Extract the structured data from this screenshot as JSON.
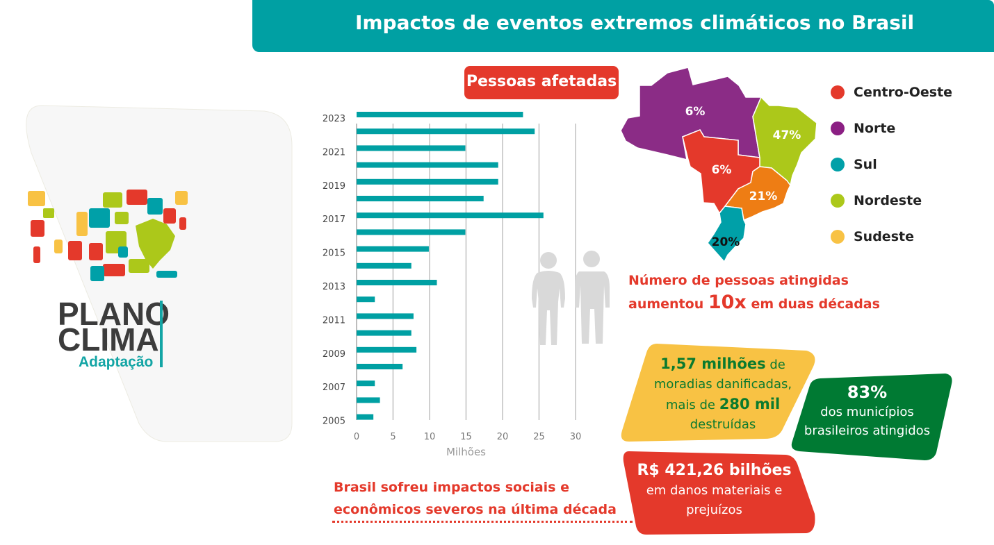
{
  "header": {
    "title": "Impactos de eventos extremos climáticos no Brasil"
  },
  "logo": {
    "line1": "PLANO",
    "line2": "CLIMA",
    "line3": "Adaptação"
  },
  "chart_badge": "Pessoas afetadas",
  "chart_data": {
    "type": "bar",
    "orientation": "horizontal",
    "categories": [
      "2023",
      "2022",
      "2021",
      "2020",
      "2019",
      "2018",
      "2017",
      "2016",
      "2015",
      "2014",
      "2013",
      "2012",
      "2011",
      "2010",
      "2009",
      "2008",
      "2007",
      "2006",
      "2005"
    ],
    "category_tick_labels": [
      "2023",
      "2021",
      "2019",
      "2017",
      "2015",
      "2013",
      "2011",
      "2009",
      "2007",
      "2005"
    ],
    "values": [
      22.8,
      24.4,
      14.9,
      19.4,
      19.4,
      17.4,
      25.6,
      14.9,
      9.9,
      7.5,
      11.0,
      2.5,
      7.8,
      7.5,
      8.2,
      6.3,
      2.5,
      3.2,
      2.3
    ],
    "xlabel": "Milhões",
    "xlim": [
      0,
      30
    ],
    "xticks": [
      "0",
      "5",
      "10",
      "15",
      "20",
      "25",
      "30"
    ],
    "grid": "vertical",
    "bar_color": "#00a0a3"
  },
  "map": {
    "regions": [
      {
        "name": "Norte",
        "value": "6%",
        "color": "#8b2c86"
      },
      {
        "name": "Centro-Oeste",
        "value": "6%",
        "color": "#e4392b"
      },
      {
        "name": "Nordeste",
        "value": "47%",
        "color": "#acc81a"
      },
      {
        "name": "Sudeste",
        "value": "21%",
        "color": "#ee7d14"
      },
      {
        "name": "Sul",
        "value": "20%",
        "color": "#00a0a8"
      }
    ]
  },
  "legend": [
    {
      "label": "Centro-Oeste",
      "color": "#e4392b"
    },
    {
      "label": "Norte",
      "color": "#8b1f83"
    },
    {
      "label": "Sul",
      "color": "#00a0a8"
    },
    {
      "label": "Nordeste",
      "color": "#acc81a"
    },
    {
      "label": "Sudeste",
      "color": "#f8c244"
    }
  ],
  "people_note": {
    "line1": "Número de pessoas atingidas",
    "line2_pre": "aumentou ",
    "line2_big": "10x",
    "line2_post": " em duas décadas"
  },
  "cards": {
    "housing": {
      "big1": "1,57 milhões",
      "t1": " de",
      "t2": "moradias danificadas,",
      "t3_pre": "mais de ",
      "big2": "280 mil",
      "t4": "destruídas"
    },
    "municipalities": {
      "big": "83%",
      "t1": "dos municípios",
      "t2": "brasileiros atingidos"
    },
    "damages": {
      "big": "R$ 421,26 bilhões",
      "t1": "em danos materiais e",
      "t2": "prejuízos"
    }
  },
  "summary": {
    "line1": "Brasil sofreu impactos sociais e",
    "line2": "econômicos severos na última década"
  }
}
